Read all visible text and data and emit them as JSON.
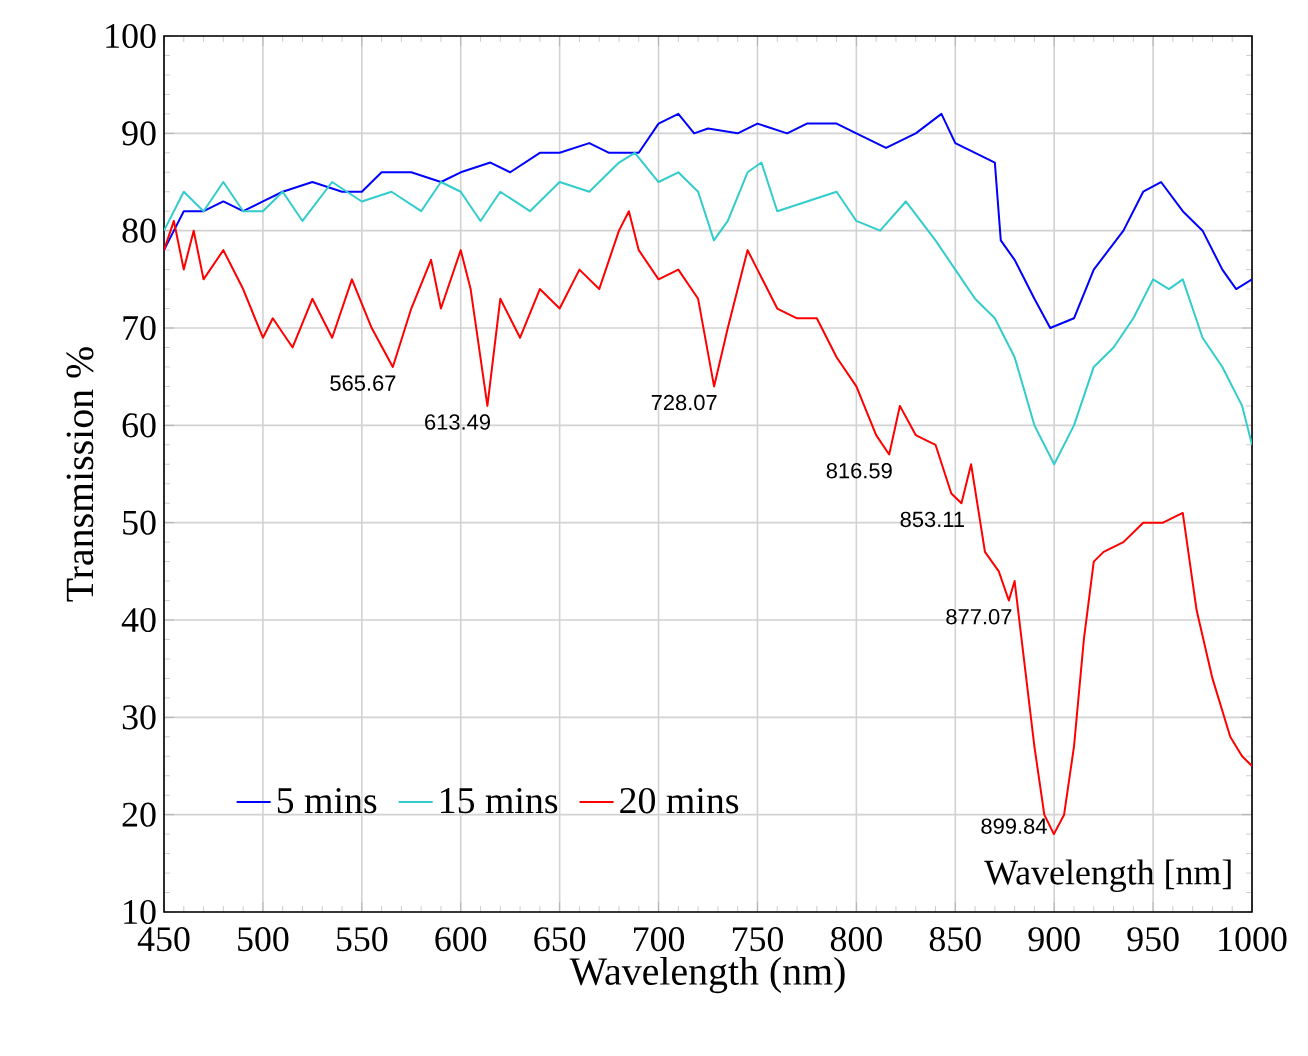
{
  "chart_data": {
    "type": "line",
    "xlabel": "Wavelength (nm)",
    "ylabel": "Transmission %",
    "xlim": [
      450,
      1000
    ],
    "xticks": [
      450,
      500,
      550,
      600,
      650,
      700,
      750,
      800,
      850,
      900,
      950,
      1000
    ],
    "ylim": [
      10,
      100
    ],
    "yticks": [
      10,
      20,
      30,
      40,
      50,
      60,
      70,
      80,
      90,
      100
    ],
    "grid": true,
    "legend": "bottom left",
    "marker": "none",
    "line_style": "solid",
    "series": [
      {
        "name": "5 mins",
        "color": "#0000ff",
        "x": [
          450,
          455,
          460,
          470,
          480,
          490,
          500,
          510,
          525,
          540,
          550,
          560,
          575,
          590,
          600,
          615,
          625,
          640,
          650,
          665,
          675,
          690,
          700,
          710,
          718,
          725,
          740,
          750,
          765,
          775,
          790,
          800,
          815,
          830,
          843,
          850,
          860,
          870,
          873,
          880,
          890,
          898,
          910,
          920,
          935,
          945,
          954,
          965,
          975,
          985,
          992,
          1000
        ],
        "values": [
          78,
          80,
          82,
          82,
          83,
          82,
          83,
          84,
          85,
          84,
          84,
          86,
          86,
          85,
          86,
          87,
          86,
          88,
          88,
          89,
          88,
          88,
          91,
          92,
          90,
          90.5,
          90,
          91,
          90,
          91,
          91,
          90,
          88.5,
          90,
          92,
          89,
          88,
          87,
          79,
          77,
          73,
          70,
          71,
          76,
          80,
          84,
          85,
          82,
          80,
          76,
          74,
          75
        ]
      },
      {
        "name": "15 mins",
        "color": "#33cccc",
        "x": [
          450,
          460,
          470,
          480,
          490,
          500,
          510,
          520,
          535,
          550,
          565,
          580,
          590,
          600,
          610,
          620,
          635,
          650,
          665,
          680,
          688,
          700,
          710,
          720,
          728,
          735,
          745,
          752,
          760,
          775,
          790,
          800,
          812,
          825,
          840,
          850,
          860,
          870,
          880,
          890,
          900,
          910,
          920,
          930,
          940,
          950,
          958,
          965,
          975,
          985,
          995,
          1000
        ],
        "values": [
          80,
          84,
          82,
          85,
          82,
          82,
          84,
          81,
          85,
          83,
          84,
          82,
          85,
          84,
          81,
          84,
          82,
          85,
          84,
          87,
          88,
          85,
          86,
          84,
          79,
          81,
          86,
          87,
          82,
          83,
          84,
          81,
          80,
          83,
          79,
          76,
          73,
          71,
          67,
          60,
          56,
          60,
          66,
          68,
          71,
          75,
          74,
          75,
          69,
          66,
          62,
          58
        ]
      },
      {
        "name": "20 mins",
        "color": "#ff0000",
        "x": [
          450,
          455,
          460,
          465,
          470,
          480,
          490,
          500,
          505,
          515,
          525,
          535,
          545,
          555,
          565.67,
          575,
          585,
          590,
          600,
          605,
          613.49,
          620,
          630,
          640,
          650,
          660,
          670,
          680,
          685,
          690,
          700,
          710,
          720,
          728.07,
          735,
          745,
          750,
          760,
          770,
          780,
          790,
          800,
          810,
          816.59,
          822,
          830,
          840,
          848,
          853.11,
          858,
          865,
          872,
          877.07,
          880,
          890,
          895,
          899.84,
          905,
          910,
          915,
          920,
          925,
          935,
          945,
          955,
          965,
          972,
          980,
          989,
          995,
          1000
        ],
        "values": [
          78,
          81,
          76,
          80,
          75,
          78,
          74,
          69,
          71,
          68,
          73,
          69,
          75,
          70,
          66,
          72,
          77,
          72,
          78,
          74,
          62,
          73,
          69,
          74,
          72,
          76,
          74,
          80,
          82,
          78,
          75,
          76,
          73,
          64,
          70,
          78,
          76,
          72,
          71,
          71,
          67,
          64,
          59,
          57,
          62,
          59,
          58,
          53,
          52,
          56,
          47,
          45,
          42,
          44,
          27,
          20,
          18,
          20,
          27,
          38,
          46,
          47,
          48,
          50,
          50,
          51,
          41,
          34,
          28,
          26,
          25
        ]
      }
    ],
    "annotations": [
      {
        "text": "565.67",
        "x": 565.67,
        "y": 66
      },
      {
        "text": "613.49",
        "x": 613.49,
        "y": 62
      },
      {
        "text": "728.07",
        "x": 728.07,
        "y": 64
      },
      {
        "text": "816.59",
        "x": 816.59,
        "y": 57
      },
      {
        "text": "853.11",
        "x": 853.11,
        "y": 52
      },
      {
        "text": "877.07",
        "x": 877.07,
        "y": 42
      },
      {
        "text": "899.84",
        "x": 899.84,
        "y": 18
      },
      "Wavelength [nm]"
    ]
  }
}
